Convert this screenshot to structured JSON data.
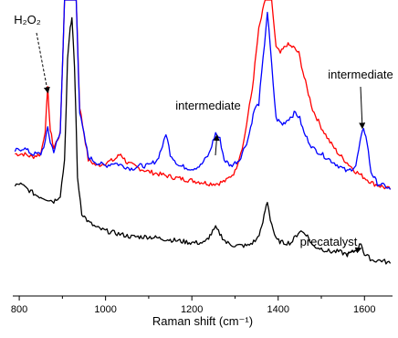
{
  "chart_data": {
    "type": "line",
    "xlabel": "Raman shift (cm⁻¹)",
    "ylabel": "",
    "xlim": [
      785,
      1665
    ],
    "ylim": [
      0,
      100
    ],
    "x_ticks": [
      800,
      1000,
      1200,
      1400,
      1600
    ],
    "y_ticks_shown": false,
    "grid": false,
    "legend": "none",
    "annotations": [
      {
        "id": "h2o2",
        "text": "H₂O₂",
        "x": 866,
        "y": 91,
        "arrow_to": [
          866,
          69
        ]
      },
      {
        "id": "intermediate1",
        "text": "intermediate",
        "x": 1238,
        "y": 65,
        "arrow_to": [
          1258,
          54
        ]
      },
      {
        "id": "intermediate2",
        "text": "intermediate",
        "x": 1595,
        "y": 86,
        "arrow_to": [
          1595,
          57
        ]
      },
      {
        "id": "precatalyst",
        "text": "precatalyst",
        "x": 1600,
        "y": 22,
        "arrow_to": [
          1590,
          16
        ]
      }
    ],
    "series": [
      {
        "color": "#ff0000",
        "x": [
          790,
          810,
          830,
          850,
          860,
          866,
          872,
          880,
          895,
          905,
          912,
          918,
          925,
          932,
          940,
          960,
          980,
          1000,
          1020,
          1035,
          1050,
          1080,
          1100,
          1130,
          1160,
          1200,
          1240,
          1260,
          1280,
          1300,
          1320,
          1340,
          1355,
          1370,
          1385,
          1395,
          1405,
          1420,
          1435,
          1448,
          1460,
          1480,
          1500,
          1520,
          1540,
          1560,
          1580,
          1600,
          1620,
          1640,
          1660
        ],
        "y": [
          48,
          48,
          47,
          48,
          56,
          70,
          56,
          50,
          55,
          100,
          100,
          100,
          100,
          100,
          64,
          46,
          44,
          45,
          46,
          48,
          45,
          43,
          42,
          41,
          40,
          39,
          38,
          38,
          39,
          42,
          52,
          70,
          90,
          100,
          100,
          84,
          82,
          85,
          84,
          82,
          74,
          63,
          57,
          52,
          48,
          45,
          42,
          40,
          38,
          37,
          36
        ]
      },
      {
        "color": "#0000ff",
        "x": [
          790,
          810,
          830,
          850,
          860,
          866,
          872,
          880,
          895,
          905,
          912,
          918,
          925,
          932,
          940,
          960,
          980,
          1000,
          1020,
          1040,
          1060,
          1080,
          1100,
          1120,
          1135,
          1140,
          1150,
          1170,
          1200,
          1220,
          1240,
          1255,
          1265,
          1275,
          1290,
          1310,
          1330,
          1345,
          1355,
          1365,
          1375,
          1385,
          1395,
          1410,
          1425,
          1440,
          1450,
          1460,
          1480,
          1500,
          1520,
          1540,
          1560,
          1580,
          1590,
          1598,
          1606,
          1615,
          1630,
          1650,
          1660
        ],
        "y": [
          49,
          50,
          48,
          48,
          52,
          57,
          52,
          49,
          55,
          100,
          100,
          100,
          100,
          100,
          62,
          47,
          45,
          44,
          45,
          44,
          43,
          44,
          44,
          46,
          52,
          55,
          48,
          44,
          43,
          44,
          48,
          55,
          53,
          46,
          44,
          46,
          53,
          63,
          65,
          80,
          96,
          78,
          60,
          58,
          60,
          62,
          60,
          55,
          50,
          48,
          46,
          44,
          42,
          44,
          52,
          57,
          52,
          42,
          38,
          37,
          36
        ]
      },
      {
        "color": "#000000",
        "x": [
          790,
          800,
          820,
          840,
          860,
          880,
          895,
          905,
          912,
          918,
          922,
          928,
          935,
          945,
          960,
          980,
          1000,
          1030,
          1060,
          1100,
          1150,
          1200,
          1230,
          1245,
          1255,
          1265,
          1280,
          1300,
          1330,
          1350,
          1362,
          1370,
          1375,
          1382,
          1395,
          1410,
          1430,
          1450,
          1465,
          1480,
          1500,
          1520,
          1540,
          1560,
          1575,
          1585,
          1592,
          1600,
          1620,
          1640,
          1660
        ],
        "y": [
          37,
          38,
          36,
          34,
          33,
          32,
          34,
          46,
          80,
          90,
          94,
          78,
          40,
          28,
          25,
          23,
          22,
          21,
          20,
          20,
          19,
          18,
          18,
          21,
          23,
          21,
          18,
          17,
          17,
          19,
          23,
          29,
          32,
          26,
          19,
          18,
          18,
          22,
          21,
          17,
          16,
          15,
          15,
          14,
          15,
          16,
          18,
          14,
          12,
          12,
          11
        ]
      }
    ]
  }
}
